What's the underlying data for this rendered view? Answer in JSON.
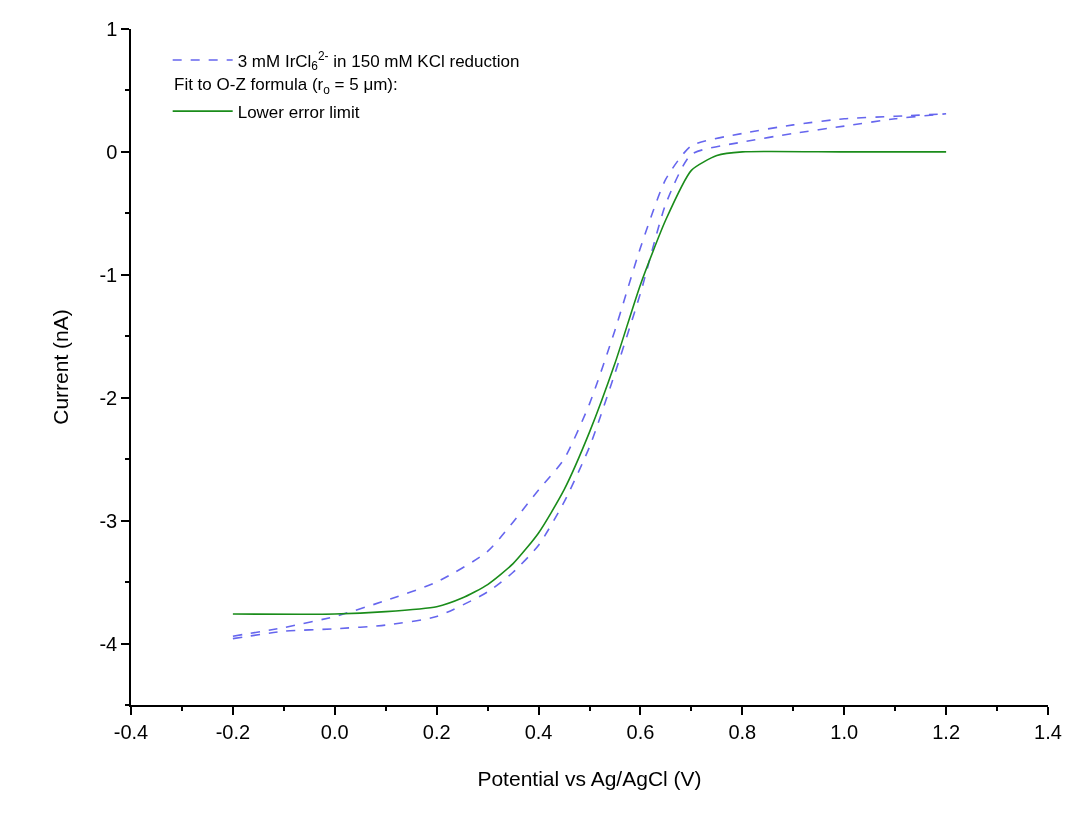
{
  "chart_data": {
    "type": "line",
    "xlabel": "Potential vs Ag/AgCl (V)",
    "ylabel": "Current (nA)",
    "xlim": [
      -0.4,
      1.4
    ],
    "xticks": [
      {
        "value": -0.4,
        "label": "-0.4"
      },
      {
        "value": -0.2,
        "label": "-0.2"
      },
      {
        "value": 0,
        "label": "0.0"
      },
      {
        "value": 0.2,
        "label": "0.2"
      },
      {
        "value": 0.4,
        "label": "0.4"
      },
      {
        "value": 0.6,
        "label": "0.6"
      },
      {
        "value": 0.8,
        "label": "0.8"
      },
      {
        "value": 1.0,
        "label": "1.0"
      },
      {
        "value": 1.2,
        "label": "1.2"
      },
      {
        "value": 1.4,
        "label": "1.4"
      }
    ],
    "ylim": [
      -4.5,
      1
    ],
    "yticks": [
      -4,
      -3,
      -2,
      -1,
      0,
      1
    ],
    "legend": "top left",
    "marker": "none",
    "annotations": [
      "Fit to O-Z formula (r$_{o}$ = 5 μm):"
    ],
    "series": [
      {
        "name": "3 mM IrCl$_{6}$$^{2-}$ in 150 mM KCl reduction",
        "color": "#6666ee",
        "line_style": "dashed",
        "x": [
          -0.2,
          -0.1,
          0,
          0.1,
          0.2,
          0.3,
          0.35,
          0.4,
          0.45,
          0.5,
          0.55,
          0.6,
          0.65,
          0.7,
          0.8,
          0.9,
          1.0,
          1.1,
          1.2
        ],
        "values": [
          -3.96,
          -3.9,
          -3.88,
          -3.85,
          -3.78,
          -3.58,
          -3.42,
          -3.2,
          -2.85,
          -2.4,
          -1.8,
          -1.15,
          -0.42,
          -0.02,
          0.08,
          0.15,
          0.21,
          0.27,
          0.31
        ]
      },
      {
        "color": "#6666ee",
        "line_style": "dashed",
        "x": [
          -0.2,
          -0.1,
          0,
          0.1,
          0.2,
          0.3,
          0.4,
          0.45,
          0.5,
          0.55,
          0.6,
          0.65,
          0.7,
          0.8,
          0.9,
          1.0,
          1.1,
          1.2
        ],
        "values": [
          -3.94,
          -3.87,
          -3.78,
          -3.65,
          -3.5,
          -3.25,
          -2.75,
          -2.5,
          -2.05,
          -1.45,
          -0.78,
          -0.22,
          0.05,
          0.15,
          0.22,
          0.27,
          0.29,
          0.31
        ]
      },
      {
        "name": "Lower error limit",
        "color": "#1a8c1a",
        "line_style": "solid",
        "x": [
          -0.2,
          0,
          0.1,
          0.2,
          0.25,
          0.3,
          0.35,
          0.4,
          0.45,
          0.5,
          0.55,
          0.6,
          0.65,
          0.7,
          0.75,
          0.8,
          1.0,
          1.2
        ],
        "values": [
          -3.76,
          -3.76,
          -3.74,
          -3.7,
          -3.63,
          -3.52,
          -3.35,
          -3.1,
          -2.75,
          -2.28,
          -1.72,
          -1.08,
          -0.55,
          -0.15,
          -0.03,
          0,
          0,
          0
        ]
      }
    ]
  }
}
